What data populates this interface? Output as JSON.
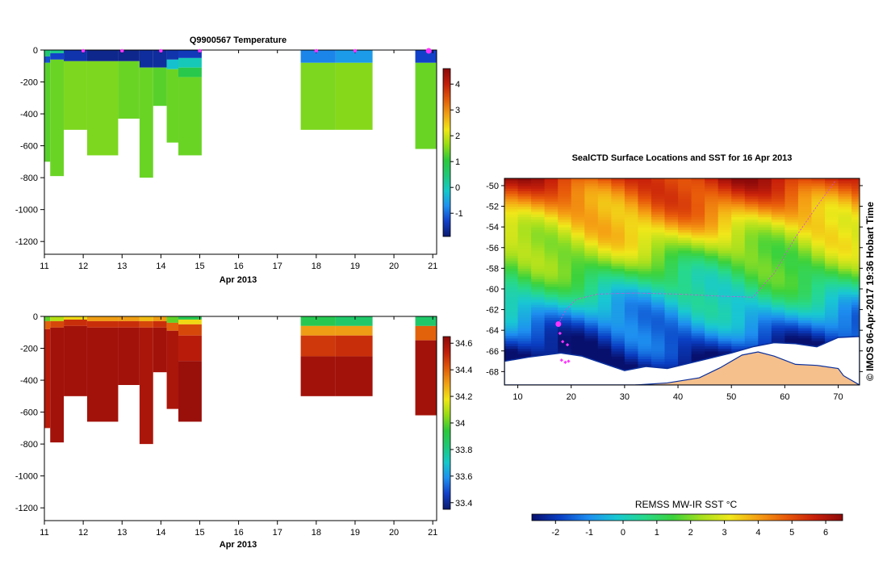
{
  "colors": {
    "sst_scale": [
      "#08106e",
      "#0a3fc4",
      "#1e8ef0",
      "#19c8d2",
      "#27d98a",
      "#3cd23c",
      "#a6e01e",
      "#f0e81a",
      "#f5a014",
      "#e85a0a",
      "#c8200a",
      "#8c0a0a"
    ],
    "ts_scale": [
      "#0c1a6e",
      "#1240c8",
      "#1e90f0",
      "#14c8c8",
      "#1ec878",
      "#2cc83c",
      "#96dc14",
      "#f0e614",
      "#f0a014",
      "#e05a0a",
      "#c01e0a",
      "#8c0a0a"
    ],
    "land": "#f5c08c",
    "track": "#d94ad9",
    "station": "#ff33ff"
  },
  "chart_data": [
    {
      "type": "heatmap",
      "title": "Q9900567  Temperature",
      "xlabel": "Apr 2013",
      "ylabel": "",
      "x_ticks": [
        "11",
        "12",
        "13",
        "14",
        "15",
        "16",
        "17",
        "18",
        "19",
        "20",
        "21"
      ],
      "y_ticks": [
        "0",
        "-200",
        "-400",
        "-600",
        "-800",
        "-1000",
        "-1200"
      ],
      "xlim": [
        11,
        21.1
      ],
      "ylim": [
        -1280,
        0
      ],
      "colorbar_ticks": [
        "-1",
        "0",
        "1",
        "2",
        "3",
        "4"
      ],
      "colorbar_range": [
        -1.9,
        4.6
      ],
      "station_markers_day": [
        12,
        13,
        14,
        15,
        18,
        19,
        21
      ],
      "profiles": [
        {
          "start": 11.0,
          "end": 11.15,
          "max_depth": 700,
          "bands": [
            [
              0,
              40,
              0.5
            ],
            [
              40,
              80,
              -1.2
            ],
            [
              80,
              700,
              1.3
            ]
          ]
        },
        {
          "start": 11.15,
          "end": 11.5,
          "max_depth": 790,
          "bands": [
            [
              0,
              20,
              0.3
            ],
            [
              20,
              60,
              -1.3
            ],
            [
              60,
              790,
              1.4
            ]
          ]
        },
        {
          "start": 11.5,
          "end": 12.1,
          "max_depth": 500,
          "bands": [
            [
              0,
              70,
              -1.5
            ],
            [
              70,
              500,
              1.5
            ]
          ]
        },
        {
          "start": 12.1,
          "end": 12.9,
          "max_depth": 660,
          "bands": [
            [
              0,
              70,
              -1.7
            ],
            [
              70,
              660,
              1.5
            ]
          ]
        },
        {
          "start": 12.9,
          "end": 13.45,
          "max_depth": 430,
          "bands": [
            [
              0,
              70,
              -1.7
            ],
            [
              70,
              430,
              1.4
            ]
          ]
        },
        {
          "start": 13.45,
          "end": 13.8,
          "max_depth": 800,
          "bands": [
            [
              0,
              110,
              -1.6
            ],
            [
              110,
              800,
              1.4
            ]
          ]
        },
        {
          "start": 13.8,
          "end": 14.15,
          "max_depth": 350,
          "bands": [
            [
              0,
              110,
              -1.6
            ],
            [
              110,
              350,
              1.3
            ]
          ]
        },
        {
          "start": 14.15,
          "end": 14.45,
          "max_depth": 580,
          "bands": [
            [
              0,
              60,
              -1.5
            ],
            [
              60,
              120,
              -0.2
            ],
            [
              120,
              580,
              1.4
            ]
          ]
        },
        {
          "start": 14.45,
          "end": 15.05,
          "max_depth": 660,
          "bands": [
            [
              0,
              50,
              -1.4
            ],
            [
              50,
              110,
              0.0
            ],
            [
              110,
              170,
              0.9
            ],
            [
              170,
              660,
              1.4
            ]
          ]
        },
        {
          "start": 17.6,
          "end": 18.5,
          "max_depth": 500,
          "bands": [
            [
              0,
              80,
              -0.8
            ],
            [
              80,
              500,
              1.5
            ]
          ]
        },
        {
          "start": 18.5,
          "end": 19.45,
          "max_depth": 500,
          "bands": [
            [
              0,
              80,
              -0.6
            ],
            [
              80,
              500,
              1.55
            ]
          ]
        },
        {
          "start": 20.55,
          "end": 21.1,
          "max_depth": 620,
          "bands": [
            [
              0,
              80,
              -1.3
            ],
            [
              80,
              620,
              1.4
            ]
          ]
        }
      ]
    },
    {
      "type": "heatmap",
      "title": "",
      "xlabel": "Apr 2013",
      "ylabel": "",
      "x_ticks": [
        "11",
        "12",
        "13",
        "14",
        "15",
        "16",
        "17",
        "18",
        "19",
        "20",
        "21"
      ],
      "y_ticks": [
        "0",
        "-200",
        "-400",
        "-600",
        "-800",
        "-1000",
        "-1200"
      ],
      "xlim": [
        11,
        21.1
      ],
      "ylim": [
        -1280,
        0
      ],
      "colorbar_ticks": [
        "33.4",
        "33.6",
        "33.8",
        "34",
        "34.2",
        "34.4",
        "34.6"
      ],
      "colorbar_range": [
        33.35,
        34.65
      ],
      "profiles": [
        {
          "start": 11.0,
          "end": 11.15,
          "max_depth": 700,
          "bands": [
            [
              0,
              30,
              34.0
            ],
            [
              30,
              80,
              34.4
            ],
            [
              80,
              700,
              34.55
            ]
          ]
        },
        {
          "start": 11.15,
          "end": 11.5,
          "max_depth": 790,
          "bands": [
            [
              0,
              30,
              34.1
            ],
            [
              30,
              70,
              34.45
            ],
            [
              70,
              790,
              34.6
            ]
          ]
        },
        {
          "start": 11.5,
          "end": 12.1,
          "max_depth": 500,
          "bands": [
            [
              0,
              20,
              34.2
            ],
            [
              20,
              60,
              34.5
            ],
            [
              60,
              500,
              34.6
            ]
          ]
        },
        {
          "start": 12.1,
          "end": 12.9,
          "max_depth": 660,
          "bands": [
            [
              0,
              30,
              34.3
            ],
            [
              30,
              70,
              34.5
            ],
            [
              70,
              660,
              34.6
            ]
          ]
        },
        {
          "start": 12.9,
          "end": 13.45,
          "max_depth": 430,
          "bands": [
            [
              0,
              30,
              34.3
            ],
            [
              30,
              70,
              34.5
            ],
            [
              70,
              430,
              34.6
            ]
          ]
        },
        {
          "start": 13.45,
          "end": 13.8,
          "max_depth": 800,
          "bands": [
            [
              0,
              30,
              34.25
            ],
            [
              30,
              70,
              34.45
            ],
            [
              70,
              800,
              34.58
            ]
          ]
        },
        {
          "start": 13.8,
          "end": 14.15,
          "max_depth": 350,
          "bands": [
            [
              0,
              30,
              34.3
            ],
            [
              30,
              70,
              34.5
            ],
            [
              70,
              350,
              34.6
            ]
          ]
        },
        {
          "start": 14.15,
          "end": 14.45,
          "max_depth": 580,
          "bands": [
            [
              0,
              40,
              34.0
            ],
            [
              40,
              90,
              34.4
            ],
            [
              90,
              580,
              34.58
            ]
          ]
        },
        {
          "start": 14.45,
          "end": 15.05,
          "max_depth": 660,
          "bands": [
            [
              0,
              20,
              33.9
            ],
            [
              20,
              50,
              34.2
            ],
            [
              50,
              120,
              34.45
            ],
            [
              120,
              280,
              34.55
            ],
            [
              280,
              660,
              34.62
            ]
          ]
        },
        {
          "start": 17.6,
          "end": 18.5,
          "max_depth": 500,
          "bands": [
            [
              0,
              60,
              33.9
            ],
            [
              60,
              120,
              34.3
            ],
            [
              120,
              250,
              34.48
            ],
            [
              250,
              500,
              34.6
            ]
          ]
        },
        {
          "start": 18.5,
          "end": 19.45,
          "max_depth": 500,
          "bands": [
            [
              0,
              60,
              33.85
            ],
            [
              60,
              120,
              34.3
            ],
            [
              120,
              250,
              34.5
            ],
            [
              250,
              500,
              34.6
            ]
          ]
        },
        {
          "start": 20.55,
          "end": 21.1,
          "max_depth": 620,
          "bands": [
            [
              0,
              60,
              33.85
            ],
            [
              60,
              150,
              34.4
            ],
            [
              150,
              620,
              34.6
            ]
          ]
        }
      ]
    },
    {
      "type": "heatmap",
      "title": "SealCTD Surface Locations and SST for 16 Apr 2013",
      "xlabel": "",
      "ylabel": "",
      "x_ticks": [
        "10",
        "20",
        "30",
        "40",
        "50",
        "60",
        "70"
      ],
      "y_ticks": [
        "-50",
        "-52",
        "-54",
        "-56",
        "-58",
        "-60",
        "-62",
        "-64",
        "-66",
        "-68"
      ],
      "xlim": [
        7.5,
        74
      ],
      "ylim": [
        -69.3,
        -49.3
      ],
      "colorbar_label": "REMSS MW-IR SST °C",
      "colorbar_ticks": [
        "-2",
        "-1",
        "0",
        "1",
        "2",
        "3",
        "4",
        "5",
        "6"
      ],
      "colorbar_range": [
        -2.7,
        6.5
      ],
      "timestamp": "© IMOS 06-Apr-2017 19:36 Hobart Time",
      "track": [
        [
          17.6,
          -63.4
        ],
        [
          19,
          -62
        ],
        [
          21,
          -61
        ],
        [
          25,
          -60.5
        ],
        [
          32,
          -60.4
        ],
        [
          40,
          -60.5
        ],
        [
          48,
          -60.7
        ],
        [
          54,
          -60.8
        ],
        [
          58,
          -58.5
        ],
        [
          62,
          -55
        ],
        [
          66,
          -52
        ],
        [
          69.5,
          -49.5
        ]
      ],
      "stations": [
        [
          17.6,
          -63.4
        ],
        [
          17.9,
          -64.3
        ],
        [
          18.4,
          -65.1
        ],
        [
          19.3,
          -65.4
        ],
        [
          18.2,
          -66.9
        ],
        [
          18.9,
          -67.1
        ],
        [
          19.5,
          -67.0
        ]
      ],
      "current_station": [
        17.6,
        -63.4
      ],
      "ice_edge": [
        [
          7.5,
          -67
        ],
        [
          12,
          -66.6
        ],
        [
          18,
          -66.2
        ],
        [
          22,
          -66.5
        ],
        [
          26,
          -67.2
        ],
        [
          30,
          -67.9
        ],
        [
          34,
          -67.5
        ],
        [
          38,
          -67.7
        ],
        [
          42,
          -67.2
        ],
        [
          46,
          -66.7
        ],
        [
          50,
          -66.2
        ],
        [
          54,
          -65.6
        ],
        [
          58,
          -65.2
        ],
        [
          62,
          -65.3
        ],
        [
          66,
          -65.6
        ],
        [
          70,
          -64.7
        ],
        [
          74,
          -64.6
        ]
      ],
      "coast": [
        [
          32,
          -69.3
        ],
        [
          38,
          -69.1
        ],
        [
          44,
          -68.6
        ],
        [
          48,
          -67.6
        ],
        [
          52,
          -66.4
        ],
        [
          55,
          -66.1
        ],
        [
          58,
          -66.5
        ],
        [
          62,
          -67.3
        ],
        [
          66,
          -67.4
        ],
        [
          70,
          -67.7
        ],
        [
          71,
          -68.4
        ],
        [
          74,
          -69.3
        ]
      ]
    }
  ]
}
